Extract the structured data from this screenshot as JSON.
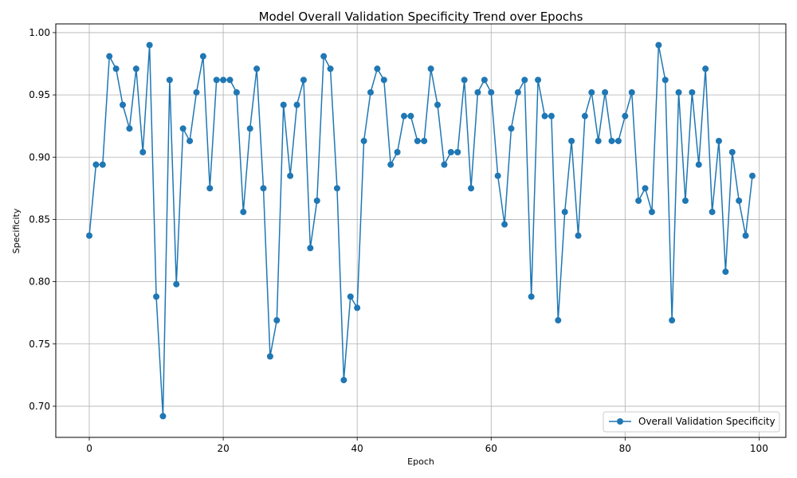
{
  "chart_data": {
    "type": "line",
    "title": "Model Overall Validation Specificity Trend over Epochs",
    "xlabel": "Epoch",
    "ylabel": "Specificity",
    "xlim": [
      -5,
      104
    ],
    "ylim": [
      0.675,
      1.007
    ],
    "xticks": [
      0,
      20,
      40,
      60,
      80,
      100
    ],
    "yticks": [
      0.7,
      0.75,
      0.8,
      0.85,
      0.9,
      0.95,
      1.0
    ],
    "xtick_labels": [
      "0",
      "20",
      "40",
      "60",
      "80",
      "100"
    ],
    "ytick_labels": [
      "0.70",
      "0.75",
      "0.80",
      "0.85",
      "0.90",
      "0.95",
      "1.00"
    ],
    "grid": true,
    "legend_position": "lower-right",
    "series": [
      {
        "name": "Overall Validation Specificity",
        "color": "#1f77b4",
        "marker": "circle",
        "x": [
          0,
          1,
          2,
          3,
          4,
          5,
          6,
          7,
          8,
          9,
          10,
          11,
          12,
          13,
          14,
          15,
          16,
          17,
          18,
          19,
          20,
          21,
          22,
          23,
          24,
          25,
          26,
          27,
          28,
          29,
          30,
          31,
          32,
          33,
          34,
          35,
          36,
          37,
          38,
          39,
          40,
          41,
          42,
          43,
          44,
          45,
          46,
          47,
          48,
          49,
          50,
          51,
          52,
          53,
          54,
          55,
          56,
          57,
          58,
          59,
          60,
          61,
          62,
          63,
          64,
          65,
          66,
          67,
          68,
          69,
          70,
          71,
          72,
          73,
          74,
          75,
          76,
          77,
          78,
          79,
          80,
          81,
          82,
          83,
          84,
          85,
          86,
          87,
          88,
          89,
          90,
          91,
          92,
          93,
          94,
          95,
          96,
          97,
          98,
          99
        ],
        "y": [
          0.837,
          0.894,
          0.894,
          0.981,
          0.971,
          0.942,
          0.923,
          0.971,
          0.904,
          0.99,
          0.788,
          0.692,
          0.962,
          0.798,
          0.923,
          0.913,
          0.952,
          0.981,
          0.875,
          0.962,
          0.962,
          0.962,
          0.952,
          0.856,
          0.923,
          0.971,
          0.875,
          0.74,
          0.769,
          0.942,
          0.885,
          0.942,
          0.962,
          0.827,
          0.865,
          0.981,
          0.971,
          0.875,
          0.721,
          0.788,
          0.779,
          0.913,
          0.952,
          0.971,
          0.962,
          0.894,
          0.904,
          0.933,
          0.933,
          0.913,
          0.913,
          0.971,
          0.942,
          0.894,
          0.904,
          0.904,
          0.962,
          0.875,
          0.952,
          0.962,
          0.952,
          0.885,
          0.846,
          0.923,
          0.952,
          0.962,
          0.788,
          0.962,
          0.933,
          0.933,
          0.769,
          0.856,
          0.913,
          0.837,
          0.933,
          0.952,
          0.913,
          0.952,
          0.913,
          0.913,
          0.933,
          0.952,
          0.865,
          0.875,
          0.856,
          0.99,
          0.962,
          0.769,
          0.952,
          0.865,
          0.952,
          0.894,
          0.971,
          0.856,
          0.913,
          0.808,
          0.904,
          0.865,
          0.837,
          0.885
        ]
      }
    ]
  }
}
